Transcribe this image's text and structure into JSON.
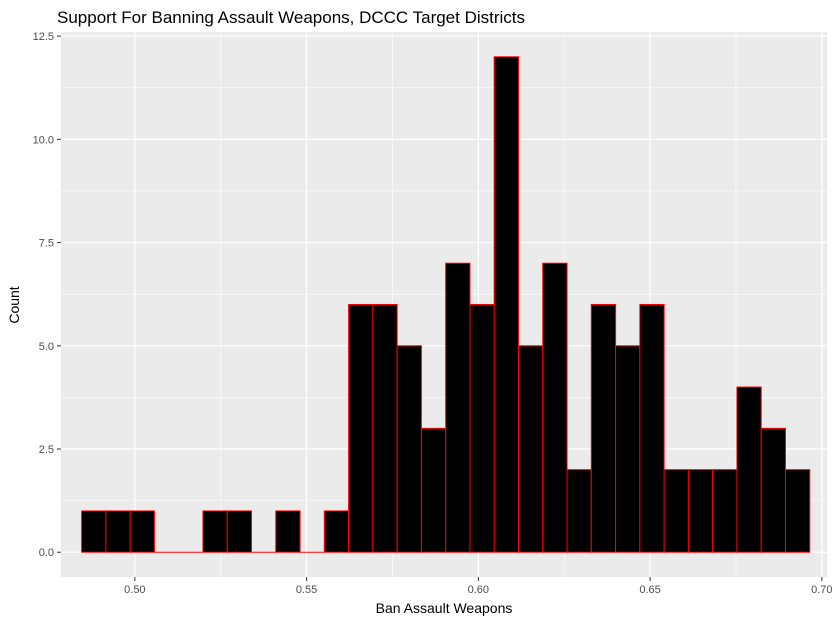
{
  "chart_data": {
    "type": "bar",
    "title": "Support For Banning Assault Weapons, DCCC Target Districts",
    "xlabel": "Ban Assault Weapons",
    "ylabel": "Count",
    "xlim": [
      0.4785,
      0.7015
    ],
    "ylim": [
      -0.6,
      12.6
    ],
    "x_ticks": [
      0.5,
      0.55,
      0.6,
      0.65,
      0.7
    ],
    "x_tick_labels": [
      "0.50",
      "0.55",
      "0.60",
      "0.65",
      "0.70"
    ],
    "y_ticks": [
      0,
      2.5,
      5,
      7.5,
      10,
      12.5
    ],
    "y_tick_labels": [
      "0.0",
      "2.5",
      "5.0",
      "7.5",
      "10.0",
      "12.5"
    ],
    "bin_start": 0.4845,
    "bin_width": 0.007066,
    "counts": [
      1,
      1,
      1,
      0,
      0,
      1,
      1,
      0,
      1,
      0,
      1,
      6,
      6,
      5,
      3,
      7,
      6,
      12,
      5,
      7,
      2,
      6,
      5,
      6,
      2,
      2,
      2,
      4,
      3,
      2
    ],
    "grid": true,
    "colors": {
      "panel": "#ebebeb",
      "grid": "#ffffff",
      "bar_fill": "#000000",
      "bar_outline": "#ff0000"
    }
  }
}
